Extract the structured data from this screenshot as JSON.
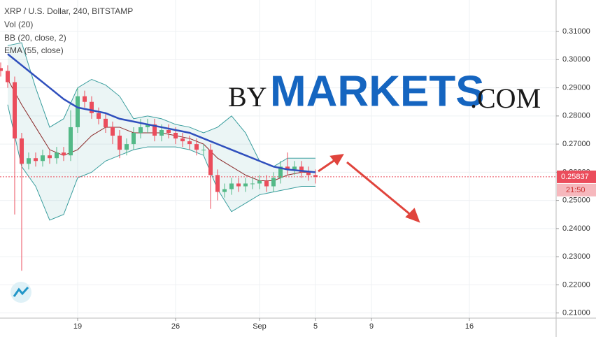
{
  "chart_data": {
    "type": "candlestick",
    "legend": [
      "XRP / U.S. Dollar, 240, BITSTAMP",
      "Vol (20)",
      "BB (20, close, 2)",
      "EMA (55, close)"
    ],
    "watermark": [
      "BY",
      "MARKETS",
      ".COM"
    ],
    "x": [
      13.5,
      14,
      14.5,
      15,
      15.5,
      16,
      16.5,
      17,
      17.5,
      18,
      18.5,
      19,
      19.5,
      20,
      20.5,
      21,
      21.5,
      22,
      22.5,
      23,
      23.5,
      24,
      24.5,
      25,
      25.5,
      26,
      26.5,
      27,
      27.5,
      28,
      28.5,
      29,
      29.5,
      30,
      30.5,
      31,
      31.5,
      32,
      32.5,
      33,
      33.5,
      34,
      34.5,
      35,
      35.5,
      36
    ],
    "open": [
      0.297,
      0.296,
      0.292,
      0.272,
      0.263,
      0.265,
      0.264,
      0.266,
      0.265,
      0.267,
      0.266,
      0.276,
      0.287,
      0.285,
      0.281,
      0.279,
      0.276,
      0.273,
      0.268,
      0.27,
      0.274,
      0.276,
      0.277,
      0.273,
      0.275,
      0.274,
      0.272,
      0.271,
      0.27,
      0.268,
      0.268,
      0.259,
      0.253,
      0.254,
      0.256,
      0.255,
      0.256,
      0.256,
      0.257,
      0.255,
      0.258,
      0.262,
      0.261,
      0.262,
      0.26,
      0.259
    ],
    "close": [
      0.296,
      0.292,
      0.272,
      0.263,
      0.265,
      0.264,
      0.266,
      0.265,
      0.267,
      0.266,
      0.276,
      0.287,
      0.285,
      0.281,
      0.279,
      0.276,
      0.273,
      0.268,
      0.27,
      0.274,
      0.276,
      0.277,
      0.273,
      0.275,
      0.274,
      0.272,
      0.271,
      0.27,
      0.268,
      0.268,
      0.259,
      0.253,
      0.254,
      0.256,
      0.255,
      0.256,
      0.256,
      0.257,
      0.255,
      0.258,
      0.262,
      0.261,
      0.262,
      0.26,
      0.259,
      0.25837
    ],
    "high": [
      0.299,
      0.298,
      0.294,
      0.274,
      0.267,
      0.267,
      0.268,
      0.268,
      0.269,
      0.269,
      0.282,
      0.29,
      0.289,
      0.287,
      0.283,
      0.281,
      0.278,
      0.275,
      0.272,
      0.276,
      0.279,
      0.279,
      0.279,
      0.277,
      0.277,
      0.276,
      0.274,
      0.273,
      0.272,
      0.27,
      0.27,
      0.261,
      0.256,
      0.258,
      0.258,
      0.258,
      0.258,
      0.259,
      0.259,
      0.26,
      0.264,
      0.267,
      0.264,
      0.264,
      0.262,
      0.261
    ],
    "low": [
      0.294,
      0.29,
      0.245,
      0.225,
      0.261,
      0.262,
      0.262,
      0.263,
      0.263,
      0.264,
      0.264,
      0.274,
      0.283,
      0.279,
      0.277,
      0.274,
      0.27,
      0.265,
      0.266,
      0.268,
      0.272,
      0.274,
      0.271,
      0.271,
      0.272,
      0.27,
      0.269,
      0.268,
      0.266,
      0.266,
      0.247,
      0.25,
      0.251,
      0.252,
      0.253,
      0.253,
      0.254,
      0.254,
      0.253,
      0.253,
      0.256,
      0.259,
      0.259,
      0.258,
      0.257,
      0.256
    ],
    "line_x": [
      14,
      15,
      16,
      17,
      18,
      19,
      20,
      21,
      22,
      23,
      24,
      25,
      26,
      27,
      28,
      29,
      30,
      31,
      32,
      33,
      34,
      35,
      36
    ],
    "bb_upper": [
      0.305,
      0.306,
      0.29,
      0.276,
      0.279,
      0.29,
      0.293,
      0.291,
      0.287,
      0.279,
      0.28,
      0.279,
      0.277,
      0.276,
      0.274,
      0.276,
      0.28,
      0.274,
      0.264,
      0.262,
      0.265,
      0.265,
      0.265
    ],
    "bb_middle": [
      0.293,
      0.284,
      0.276,
      0.268,
      0.266,
      0.268,
      0.273,
      0.276,
      0.276,
      0.274,
      0.274,
      0.274,
      0.273,
      0.272,
      0.27,
      0.265,
      0.262,
      0.259,
      0.257,
      0.257,
      0.259,
      0.26,
      0.26
    ],
    "bb_lower": [
      0.284,
      0.262,
      0.255,
      0.243,
      0.245,
      0.258,
      0.26,
      0.264,
      0.266,
      0.268,
      0.269,
      0.269,
      0.269,
      0.268,
      0.266,
      0.254,
      0.246,
      0.249,
      0.252,
      0.253,
      0.254,
      0.255,
      0.255
    ],
    "ema": [
      0.302,
      0.298,
      0.294,
      0.29,
      0.286,
      0.283,
      0.282,
      0.281,
      0.279,
      0.278,
      0.277,
      0.276,
      0.275,
      0.274,
      0.272,
      0.27,
      0.268,
      0.266,
      0.264,
      0.262,
      0.261,
      0.2605,
      0.26
    ],
    "up_color": "#53b987",
    "down_color": "#eb4d5c",
    "bb_color": "#3a9e9e",
    "bb_middle_color": "#8b2a2a",
    "ema_color": "#2f4fbd",
    "last_price": 0.25837,
    "last_time": "21:50",
    "xlim": [
      13.45,
      53.2
    ],
    "ylim": [
      0.20818,
      0.32119
    ],
    "xticks": [
      {
        "value": 19,
        "label": "19"
      },
      {
        "value": 26,
        "label": "26"
      },
      {
        "value": 32,
        "label": "Sep"
      },
      {
        "value": 36,
        "label": "5"
      },
      {
        "value": 40,
        "label": "9"
      },
      {
        "value": 47,
        "label": "16"
      }
    ],
    "yticks": [
      {
        "value": 0.21,
        "label": "0.21000"
      },
      {
        "value": 0.22,
        "label": "0.22000"
      },
      {
        "value": 0.23,
        "label": "0.23000"
      },
      {
        "value": 0.24,
        "label": "0.24000"
      },
      {
        "value": 0.25,
        "label": "0.25000"
      },
      {
        "value": 0.26,
        "label": "0.26000"
      },
      {
        "value": 0.27,
        "label": "0.27000"
      },
      {
        "value": 0.28,
        "label": "0.28000"
      },
      {
        "value": 0.29,
        "label": "0.29000"
      },
      {
        "value": 0.3,
        "label": "0.30000"
      },
      {
        "value": 0.31,
        "label": "0.31000"
      }
    ],
    "grid": true
  }
}
